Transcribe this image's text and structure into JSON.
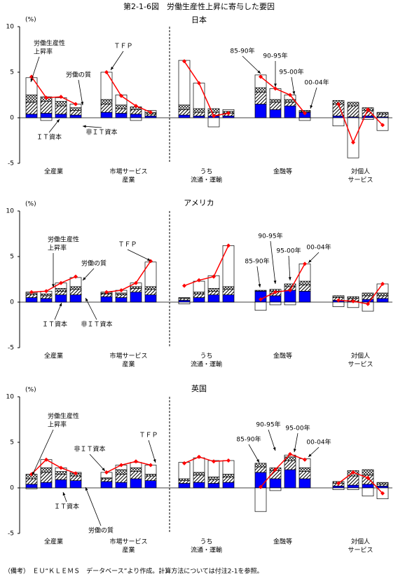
{
  "title": "第2-1-6図　労働生産性上昇に寄与した要因",
  "note": "（備考）　ＥＵ“ＫＬＥＭＳ　データベース”より作成。計算方法については付注2-1を参照。",
  "chart_data": [
    {
      "type": "bar",
      "stacked": true,
      "title": "日本",
      "y_unit": "(%)",
      "ylim": [
        -5,
        10
      ],
      "yticks": [
        -5,
        0,
        5,
        10
      ],
      "categories": [
        [
          "全産業"
        ],
        [
          "市場サービス",
          "産業"
        ],
        [
          "うち",
          "流通・運輸"
        ],
        [
          "金融等"
        ],
        [
          "対個人",
          "サービス"
        ]
      ],
      "series": [
        {
          "kind": "bar",
          "color": "#0000ff",
          "pattern": "solid",
          "values": [
            [
              0.4,
              0.5,
              0.4,
              0.3
            ],
            [
              0.6,
              0.5,
              0.4,
              0.2
            ],
            [
              0.3,
              0.2,
              0.2,
              0.2
            ],
            [
              1.5,
              0.9,
              1.3,
              0.6
            ],
            [
              0.2,
              0.1,
              0.2,
              0.1
            ]
          ]
        },
        {
          "kind": "bar",
          "color": "#000000",
          "pattern": "diagonal",
          "values": [
            [
              1.3,
              1.3,
              0.9,
              0.5
            ],
            [
              0.9,
              0.5,
              0.5,
              0.2
            ],
            [
              0.6,
              0.4,
              0.4,
              0.3
            ],
            [
              1.3,
              0.8,
              0.4,
              0.1
            ],
            [
              1.3,
              1.2,
              0.6,
              0.3
            ]
          ]
        },
        {
          "kind": "bar",
          "color": "#000000",
          "pattern": "cross",
          "values": [
            [
              0.8,
              0.5,
              0.5,
              0.3
            ],
            [
              0.5,
              0.4,
              0.3,
              0.2
            ],
            [
              0.5,
              0.4,
              0.4,
              0.2
            ],
            [
              0.5,
              0.3,
              0.3,
              0.1
            ],
            [
              0.4,
              0.4,
              0.3,
              0.2
            ]
          ]
        },
        {
          "kind": "bar",
          "color": "#ffffff",
          "pattern": "solid",
          "values": [
            [
              1.9,
              -0.3,
              0.4,
              0.4
            ],
            [
              3.0,
              1.1,
              -0.3,
              0.2
            ],
            [
              4.9,
              2.8,
              -1.0,
              0.2
            ],
            [
              1.4,
              1.2,
              0.5,
              -0.3
            ],
            [
              -0.9,
              -4.4,
              -0.2,
              -1.4
            ]
          ]
        },
        {
          "kind": "line",
          "color": "#ff0000",
          "values": [
            [
              4.5,
              2.2,
              2.3,
              1.5
            ],
            [
              5.0,
              2.4,
              1.3,
              0.6
            ],
            [
              6.2,
              3.8,
              0.2,
              0.5
            ],
            [
              4.5,
              3.2,
              2.5,
              0.5
            ],
            [
              1.5,
              -2.7,
              0.9,
              -0.8
            ]
          ]
        }
      ],
      "annotations": [
        [
          "労働生産性",
          "上昇率"
        ],
        [
          "ＴＦＰ"
        ],
        [
          "労働の質"
        ],
        [
          "非ＩＴ資本"
        ],
        [
          "ＩＴ資本"
        ],
        [
          "85-90年"
        ],
        [
          "90-95年"
        ],
        [
          "95-00年"
        ],
        [
          "00-04年"
        ]
      ]
    },
    {
      "type": "bar",
      "stacked": true,
      "title": "アメリカ",
      "y_unit": "(%)",
      "ylim": [
        -5,
        10
      ],
      "yticks": [
        -5,
        0,
        5,
        10
      ],
      "categories": [
        [
          "全産業"
        ],
        [
          "市場サービス",
          "産業"
        ],
        [
          "うち",
          "流通・運輸"
        ],
        [
          "金融等"
        ],
        [
          "対個人",
          "サービス"
        ]
      ],
      "series": [
        {
          "kind": "bar",
          "color": "#0000ff",
          "pattern": "solid",
          "values": [
            [
              0.5,
              0.4,
              0.8,
              0.8
            ],
            [
              0.6,
              0.5,
              1.1,
              0.8
            ],
            [
              0.2,
              0.5,
              0.8,
              0.8
            ],
            [
              1.2,
              0.7,
              1.3,
              1.2
            ],
            [
              0.2,
              0.1,
              0.3,
              0.4
            ]
          ]
        },
        {
          "kind": "bar",
          "color": "#000000",
          "pattern": "diagonal",
          "values": [
            [
              0.3,
              0.3,
              0.4,
              0.6
            ],
            [
              0.3,
              0.3,
              0.4,
              0.6
            ],
            [
              0.2,
              0.4,
              0.4,
              0.6
            ],
            [
              0.0,
              0.5,
              0.4,
              0.7
            ],
            [
              0.3,
              0.3,
              0.4,
              0.3
            ]
          ]
        },
        {
          "kind": "bar",
          "color": "#000000",
          "pattern": "cross",
          "values": [
            [
              0.2,
              0.2,
              0.3,
              0.3
            ],
            [
              0.1,
              0.2,
              0.2,
              0.3
            ],
            [
              0.1,
              0.2,
              0.3,
              0.3
            ],
            [
              0.1,
              0.2,
              0.3,
              0.4
            ],
            [
              0.2,
              0.2,
              0.3,
              0.3
            ]
          ]
        },
        {
          "kind": "bar",
          "color": "#ffffff",
          "pattern": "solid",
          "values": [
            [
              0.1,
              0.3,
              0.6,
              1.0
            ],
            [
              0.1,
              0.3,
              0.4,
              2.7
            ],
            [
              -0.2,
              1.2,
              1.4,
              4.5
            ],
            [
              -0.9,
              -0.3,
              -0.3,
              1.9
            ],
            [
              -0.5,
              -0.6,
              -1.0,
              1.0
            ]
          ]
        },
        {
          "kind": "line",
          "color": "#ff0000",
          "values": [
            [
              1.1,
              1.2,
              2.1,
              2.8
            ],
            [
              1.1,
              1.3,
              2.1,
              4.5
            ],
            [
              1.8,
              2.4,
              2.8,
              6.2
            ],
            [
              0.3,
              1.1,
              1.3,
              4.2
            ],
            [
              0.2,
              0.1,
              -0.2,
              2.0
            ]
          ]
        }
      ],
      "annotations": [
        [
          "労働生産性",
          "上昇率"
        ],
        [
          "ＴＦＰ"
        ],
        [
          "労働の質"
        ],
        [
          "非ＩＴ資本"
        ],
        [
          "ＩＴ資本"
        ],
        [
          "85-90年"
        ],
        [
          "90-95年"
        ],
        [
          "95-00年"
        ],
        [
          "00-04年"
        ]
      ]
    },
    {
      "type": "bar",
      "stacked": true,
      "title": "英国",
      "y_unit": "(%)",
      "ylim": [
        -5,
        10
      ],
      "yticks": [
        -5,
        0,
        5,
        10
      ],
      "categories": [
        [
          "全産業"
        ],
        [
          "市場サービス",
          "産業"
        ],
        [
          "うち",
          "流通・運輸"
        ],
        [
          "金融等"
        ],
        [
          "対個人",
          "サービス"
        ]
      ],
      "series": [
        {
          "kind": "bar",
          "color": "#0000ff",
          "pattern": "solid",
          "values": [
            [
              0.4,
              0.6,
              0.9,
              0.8
            ],
            [
              0.7,
              0.6,
              1.0,
              0.8
            ],
            [
              0.5,
              0.6,
              0.5,
              0.6
            ],
            [
              1.7,
              1.0,
              2.0,
              1.0
            ],
            [
              0.2,
              0.3,
              0.4,
              0.2
            ]
          ]
        },
        {
          "kind": "bar",
          "color": "#000000",
          "pattern": "diagonal",
          "values": [
            [
              0.6,
              1.1,
              0.6,
              0.5
            ],
            [
              0.3,
              0.9,
              0.8,
              0.5
            ],
            [
              0.3,
              0.8,
              0.4,
              0.6
            ],
            [
              0.6,
              0.9,
              1.0,
              0.8
            ],
            [
              0.3,
              1.0,
              1.0,
              0.2
            ]
          ]
        },
        {
          "kind": "bar",
          "color": "#000000",
          "pattern": "cross",
          "values": [
            [
              0.5,
              0.5,
              0.3,
              0.3
            ],
            [
              0.1,
              0.5,
              0.4,
              0.2
            ],
            [
              0.2,
              0.3,
              0.3,
              0.3
            ],
            [
              0.4,
              0.3,
              0.4,
              0.4
            ],
            [
              0.2,
              0.6,
              0.6,
              0.2
            ]
          ]
        },
        {
          "kind": "bar",
          "color": "#ffffff",
          "pattern": "solid",
          "values": [
            [
              -0.1,
              0.9,
              0.4,
              0.1
            ],
            [
              0.6,
              0.5,
              0.6,
              1.0
            ],
            [
              1.8,
              1.6,
              1.8,
              1.5
            ],
            [
              -2.6,
              -0.3,
              0.2,
              1.0
            ],
            [
              -0.2,
              -0.2,
              -0.9,
              -1.2
            ]
          ]
        },
        {
          "kind": "line",
          "color": "#ff0000",
          "values": [
            [
              1.5,
              3.1,
              2.2,
              1.6
            ],
            [
              1.7,
              2.5,
              2.9,
              2.5
            ],
            [
              2.7,
              3.4,
              2.9,
              3.0
            ],
            [
              0.1,
              2.0,
              3.7,
              3.1
            ],
            [
              0.5,
              1.7,
              1.1,
              -0.6
            ]
          ]
        }
      ],
      "annotations": [
        [
          "労働生産性",
          "上昇率"
        ],
        [
          "ＴＦＰ"
        ],
        [
          "労働の質"
        ],
        [
          "非ＩＴ資本"
        ],
        [
          "ＩＴ資本"
        ],
        [
          "85-90年"
        ],
        [
          "90-95年"
        ],
        [
          "95-00年"
        ],
        [
          "00-04年"
        ]
      ]
    }
  ]
}
